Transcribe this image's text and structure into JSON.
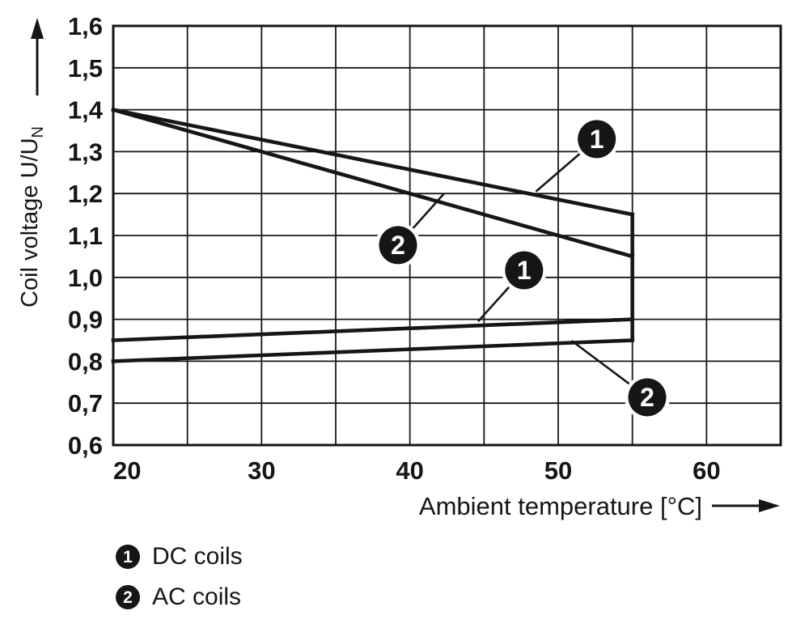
{
  "chart_data": {
    "type": "line",
    "title": "",
    "xlabel": "Ambient temperature [°C]",
    "ylabel": "Coil voltage U/U_N",
    "xlim": [
      20,
      65
    ],
    "ylim": [
      0.6,
      1.6
    ],
    "x_grid_step": 5,
    "y_grid_step": 0.1,
    "grid": true,
    "x_ticks": [
      {
        "v": 20,
        "label": "20"
      },
      {
        "v": 30,
        "label": "30"
      },
      {
        "v": 40,
        "label": "40"
      },
      {
        "v": 50,
        "label": "50"
      },
      {
        "v": 60,
        "label": "60"
      }
    ],
    "y_ticks": [
      {
        "v": 1.6,
        "label": "1,6"
      },
      {
        "v": 1.5,
        "label": "1,5"
      },
      {
        "v": 1.4,
        "label": "1,4"
      },
      {
        "v": 1.3,
        "label": "1,3"
      },
      {
        "v": 1.2,
        "label": "1,2"
      },
      {
        "v": 1.1,
        "label": "1,1"
      },
      {
        "v": 1.0,
        "label": "1,0"
      },
      {
        "v": 0.9,
        "label": "0,9"
      },
      {
        "v": 0.8,
        "label": "0,8"
      },
      {
        "v": 0.7,
        "label": "0,7"
      },
      {
        "v": 0.6,
        "label": "0,6"
      }
    ],
    "series": [
      {
        "name": "DC coils upper limit",
        "callout": "1",
        "points": [
          [
            20,
            1.4
          ],
          [
            55,
            1.15
          ]
        ]
      },
      {
        "name": "AC coils upper limit",
        "callout": "2",
        "points": [
          [
            20,
            1.4
          ],
          [
            55,
            1.05
          ]
        ]
      },
      {
        "name": "DC coils lower limit",
        "callout": "1",
        "points": [
          [
            20,
            0.85
          ],
          [
            55,
            0.9
          ]
        ]
      },
      {
        "name": "AC coils lower limit",
        "callout": "2",
        "points": [
          [
            20,
            0.8
          ],
          [
            55,
            0.85
          ]
        ]
      },
      {
        "name": "max temperature boundary",
        "callout": null,
        "points": [
          [
            55,
            1.15
          ],
          [
            55,
            0.85
          ]
        ]
      }
    ],
    "callouts": [
      {
        "label": "1",
        "x": 52.6,
        "y": 1.33,
        "tx": 48.5,
        "ty": 1.205
      },
      {
        "label": "2",
        "x": 39.2,
        "y": 1.077,
        "tx": 42.3,
        "ty": 1.2
      },
      {
        "label": "1",
        "x": 47.7,
        "y": 1.017,
        "tx": 44.6,
        "ty": 0.895
      },
      {
        "label": "2",
        "x": 56.0,
        "y": 0.714,
        "tx": 50.9,
        "ty": 0.849
      }
    ],
    "legend": [
      {
        "marker": "1",
        "label": "DC coils"
      },
      {
        "marker": "2",
        "label": "AC coils"
      }
    ],
    "line_color": "#161616",
    "grid_color": "#161616",
    "background": "#ffffff"
  }
}
